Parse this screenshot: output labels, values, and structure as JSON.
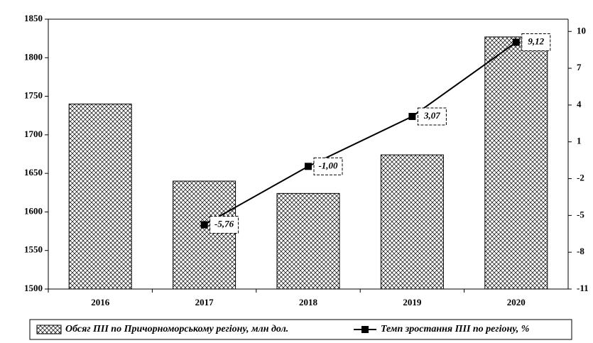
{
  "chart_data": {
    "type": "bar_line",
    "categories": [
      "2016",
      "2017",
      "2018",
      "2019",
      "2020"
    ],
    "series": [
      {
        "name": "Обсяг ПІІ по Причорноморському регіону, млн дол.",
        "type": "bar",
        "color": "#000000",
        "values": [
          1740,
          1640,
          1624,
          1674,
          1827
        ]
      },
      {
        "name": "Темп зростання ПІІ по регіону, %",
        "type": "line",
        "axis": "y2",
        "color": "#000000",
        "values": [
          null,
          -5.76,
          -1.0,
          3.07,
          9.12
        ],
        "value_labels": [
          null,
          "-5,76",
          "-1,00",
          "3,07",
          "9,12"
        ]
      }
    ],
    "ylim": [
      1500,
      1850
    ],
    "yticks": [
      1500,
      1550,
      1600,
      1650,
      1700,
      1750,
      1800,
      1850
    ],
    "y2lim": [
      -11,
      11
    ],
    "y2ticks": [
      -11,
      -8,
      -5,
      -2,
      1,
      4,
      7,
      10
    ],
    "legend": "bottom"
  }
}
